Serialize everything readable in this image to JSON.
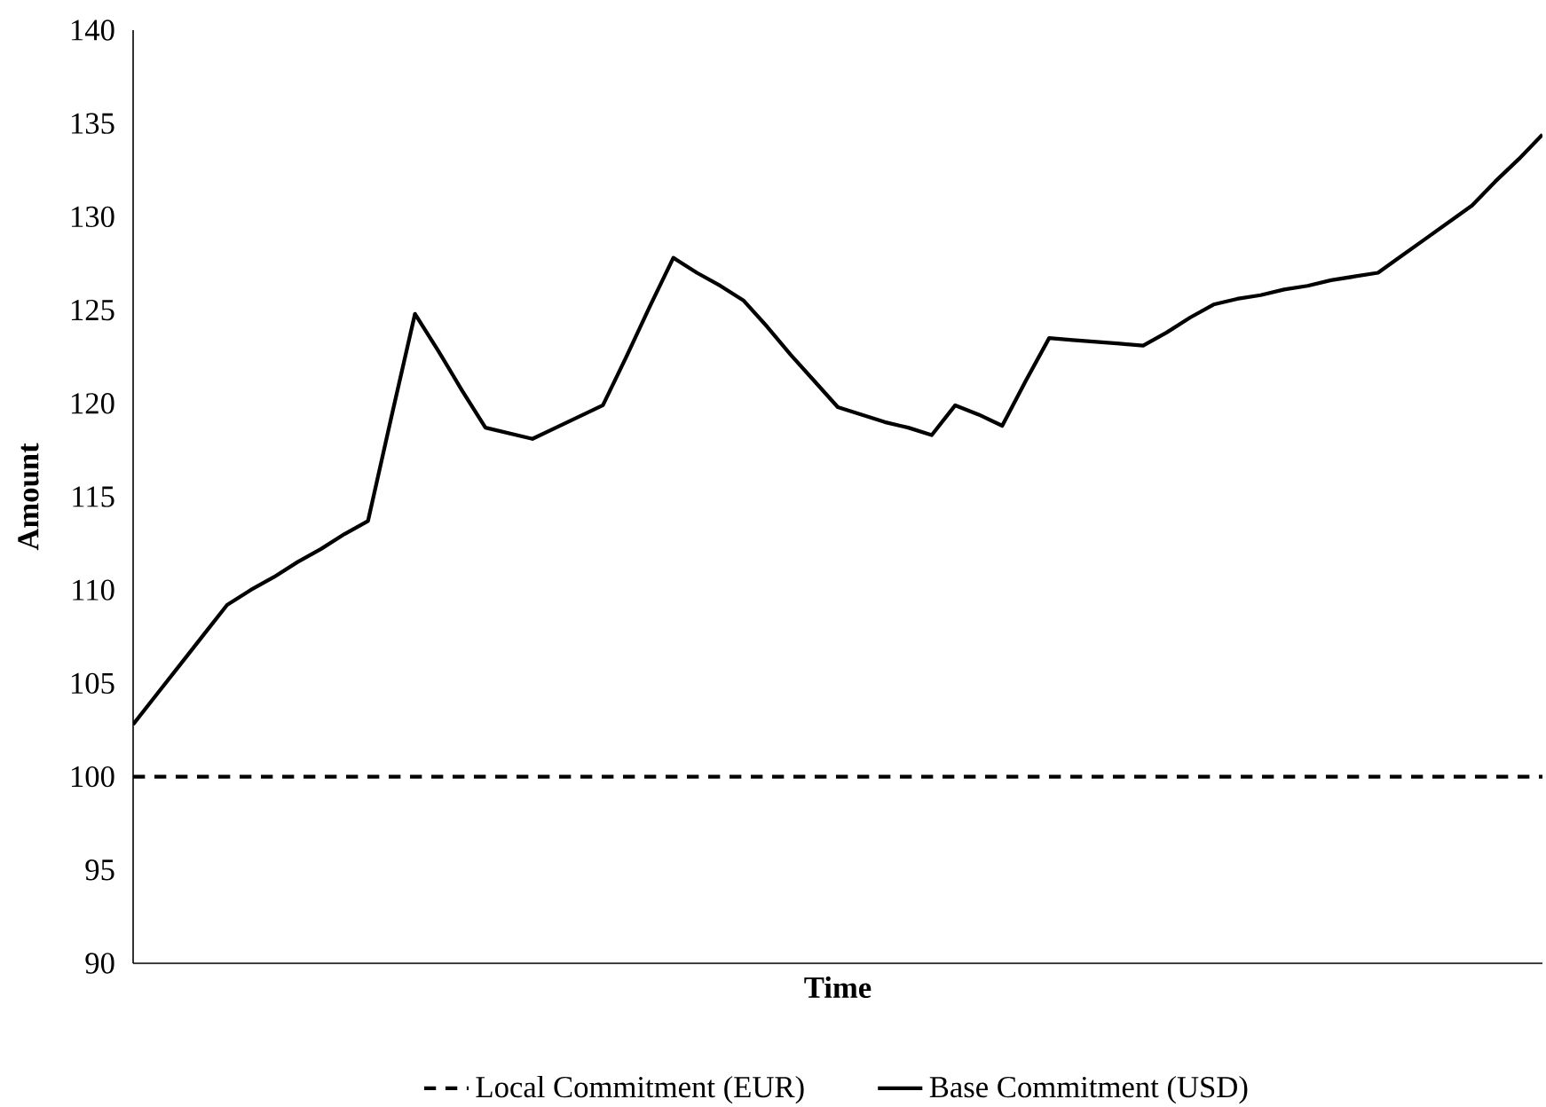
{
  "chart_data": {
    "type": "line",
    "xlabel": "Time",
    "ylabel": "Amount",
    "ylim": [
      90,
      140
    ],
    "yticks": [
      90,
      95,
      100,
      105,
      110,
      115,
      120,
      125,
      130,
      135,
      140
    ],
    "legend": "bottom",
    "tick_labels": "y",
    "categories": [
      null,
      null,
      null,
      null,
      null,
      null,
      null,
      null,
      null,
      null,
      null,
      null,
      null,
      null,
      null,
      null,
      null,
      null,
      null,
      null,
      null,
      null,
      null,
      null,
      null,
      null,
      null,
      null,
      null,
      null,
      null,
      null,
      null,
      null,
      null,
      null,
      null,
      null,
      null,
      null,
      null,
      null,
      null,
      null,
      null,
      null,
      null,
      null,
      null,
      null,
      null,
      null,
      null,
      null,
      null,
      null,
      null,
      null,
      null,
      null,
      null
    ],
    "series": [
      {
        "name": "Local Commitment (EUR)",
        "color": "#000000",
        "line_style": "dashed",
        "values": [
          100,
          100,
          100,
          100,
          100,
          100,
          100,
          100,
          100,
          100,
          100,
          100,
          100,
          100,
          100,
          100,
          100,
          100,
          100,
          100,
          100,
          100,
          100,
          100,
          100,
          100,
          100,
          100,
          100,
          100,
          100,
          100,
          100,
          100,
          100,
          100,
          100,
          100,
          100,
          100,
          100,
          100,
          100,
          100,
          100,
          100,
          100,
          100,
          100,
          100,
          100,
          100,
          100,
          100,
          100,
          100,
          100,
          100,
          100,
          100,
          100
        ]
      },
      {
        "name": "Base Commitment (USD)",
        "color": "#000000",
        "line_style": "solid",
        "values": [
          102.8,
          104.4,
          106.0,
          107.6,
          109.2,
          110.0,
          110.7,
          111.5,
          112.2,
          113.0,
          113.7,
          119.3,
          124.8,
          122.8,
          120.7,
          118.7,
          118.4,
          118.1,
          118.7,
          119.3,
          119.9,
          122.5,
          125.2,
          127.8,
          127.0,
          126.3,
          125.5,
          124.1,
          122.6,
          121.2,
          119.8,
          119.4,
          119.0,
          118.7,
          118.3,
          119.9,
          119.4,
          118.8,
          121.2,
          123.5,
          123.4,
          123.3,
          123.2,
          123.1,
          123.8,
          124.6,
          125.3,
          125.6,
          125.8,
          126.1,
          126.3,
          126.6,
          126.8,
          127.0,
          127.9,
          128.8,
          129.7,
          130.6,
          131.9,
          133.1,
          134.4
        ]
      }
    ]
  }
}
